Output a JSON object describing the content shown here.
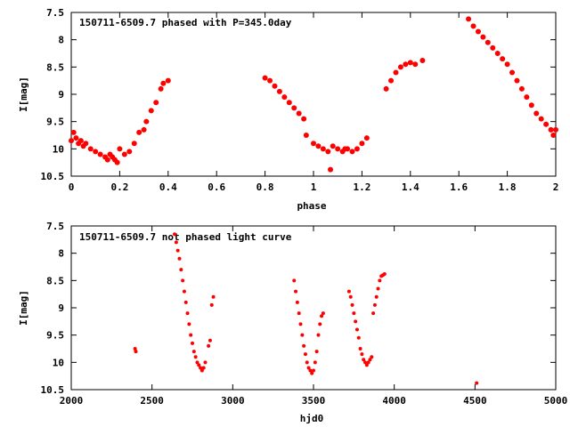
{
  "chart_data": [
    {
      "type": "scatter",
      "title": "150711-6509.7 phased with P=345.0day",
      "xlabel": "phase",
      "ylabel": "I[mag]",
      "xlim": [
        0,
        2
      ],
      "ylim": [
        10.5,
        7.5
      ],
      "y_inverted": true,
      "xticks": [
        "0",
        "0.2",
        "0.4",
        "0.6",
        "0.8",
        "1",
        "1.2",
        "1.4",
        "1.6",
        "1.8",
        "2"
      ],
      "yticks": [
        "7.5",
        "8",
        "8.5",
        "9",
        "9.5",
        "10",
        "10.5"
      ],
      "marker_color": "#ff0000",
      "grid": false,
      "x": [
        0.0,
        0.01,
        0.02,
        0.03,
        0.04,
        0.05,
        0.06,
        0.08,
        0.1,
        0.12,
        0.14,
        0.15,
        0.16,
        0.17,
        0.18,
        0.19,
        0.2,
        0.22,
        0.24,
        0.26,
        0.28,
        0.3,
        0.31,
        0.33,
        0.35,
        0.37,
        0.38,
        0.4,
        0.8,
        0.82,
        0.84,
        0.86,
        0.88,
        0.9,
        0.92,
        0.94,
        0.96,
        0.97,
        1.0,
        1.02,
        1.04,
        1.06,
        1.07,
        1.08,
        1.1,
        1.12,
        1.13,
        1.14,
        1.16,
        1.18,
        1.2,
        1.22,
        1.3,
        1.32,
        1.34,
        1.36,
        1.38,
        1.4,
        1.42,
        1.45,
        1.64,
        1.66,
        1.68,
        1.7,
        1.72,
        1.74,
        1.76,
        1.78,
        1.8,
        1.82,
        1.84,
        1.86,
        1.88,
        1.9,
        1.92,
        1.94,
        1.96,
        1.98,
        1.99,
        2.0
      ],
      "y": [
        9.85,
        9.7,
        9.8,
        9.9,
        9.85,
        9.95,
        9.9,
        10.0,
        10.05,
        10.1,
        10.15,
        10.2,
        10.1,
        10.15,
        10.2,
        10.25,
        10.0,
        10.1,
        10.05,
        9.9,
        9.7,
        9.65,
        9.5,
        9.3,
        9.15,
        8.9,
        8.8,
        8.75,
        8.7,
        8.75,
        8.85,
        8.95,
        9.05,
        9.15,
        9.25,
        9.35,
        9.45,
        9.75,
        9.9,
        9.95,
        10.0,
        10.05,
        10.38,
        9.95,
        10.0,
        10.05,
        10.0,
        10.0,
        10.05,
        10.0,
        9.9,
        9.8,
        8.9,
        8.75,
        8.6,
        8.5,
        8.45,
        8.42,
        8.45,
        8.38,
        7.62,
        7.75,
        7.85,
        7.95,
        8.05,
        8.15,
        8.25,
        8.35,
        8.45,
        8.6,
        8.75,
        8.9,
        9.05,
        9.2,
        9.35,
        9.45,
        9.55,
        9.65,
        9.75,
        9.65
      ]
    },
    {
      "type": "scatter",
      "title": "150711-6509.7 not phased light curve",
      "xlabel": "hjd0",
      "ylabel": "I[mag]",
      "xlim": [
        2000,
        5000
      ],
      "ylim": [
        10.5,
        7.5
      ],
      "y_inverted": true,
      "xticks": [
        "2000",
        "2500",
        "3000",
        "3500",
        "4000",
        "4500",
        "5000"
      ],
      "yticks": [
        "7.5",
        "8",
        "8.5",
        "9",
        "9.5",
        "10",
        "10.5"
      ],
      "marker_color": "#ff0000",
      "grid": false,
      "x": [
        2395,
        2400,
        2640,
        2650,
        2660,
        2670,
        2680,
        2690,
        2700,
        2710,
        2720,
        2730,
        2740,
        2750,
        2760,
        2770,
        2780,
        2790,
        2800,
        2810,
        2820,
        2830,
        2850,
        2860,
        2870,
        2880,
        3380,
        3390,
        3400,
        3410,
        3420,
        3430,
        3440,
        3450,
        3460,
        3470,
        3480,
        3490,
        3500,
        3510,
        3520,
        3530,
        3540,
        3550,
        3560,
        3720,
        3730,
        3740,
        3750,
        3760,
        3770,
        3780,
        3790,
        3800,
        3810,
        3820,
        3830,
        3840,
        3850,
        3860,
        3870,
        3880,
        3890,
        3900,
        3910,
        3920,
        3930,
        3940,
        4510
      ],
      "y": [
        9.75,
        9.8,
        7.65,
        7.8,
        7.95,
        8.1,
        8.3,
        8.5,
        8.7,
        8.9,
        9.1,
        9.3,
        9.5,
        9.65,
        9.8,
        9.9,
        10.0,
        10.05,
        10.1,
        10.15,
        10.1,
        10.0,
        9.7,
        9.6,
        8.95,
        8.8,
        8.5,
        8.7,
        8.9,
        9.1,
        9.3,
        9.5,
        9.7,
        9.85,
        10.0,
        10.1,
        10.15,
        10.2,
        10.15,
        10.0,
        9.8,
        9.5,
        9.3,
        9.15,
        9.1,
        8.7,
        8.8,
        8.95,
        9.1,
        9.25,
        9.4,
        9.55,
        9.75,
        9.85,
        9.95,
        10.0,
        10.05,
        10.0,
        9.95,
        9.9,
        9.1,
        8.95,
        8.8,
        8.65,
        8.5,
        8.42,
        8.4,
        8.38,
        10.38
      ]
    }
  ]
}
